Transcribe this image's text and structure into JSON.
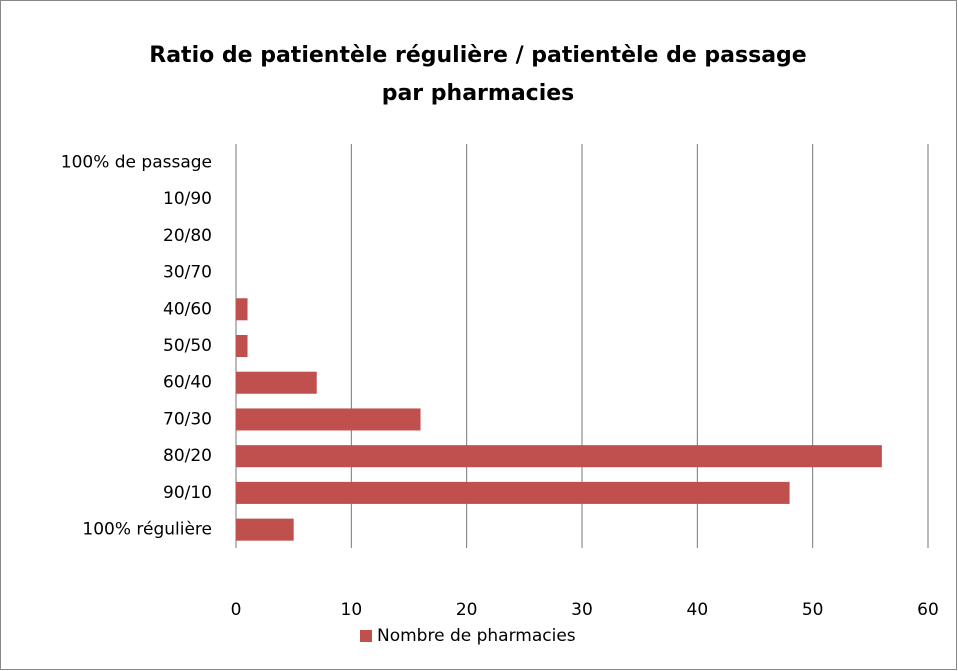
{
  "chart_data": {
    "type": "bar",
    "orientation": "horizontal",
    "title": [
      "Ratio de patientèle régulière / patientèle de passage",
      "par pharmacies"
    ],
    "categories": [
      "100% de passage",
      "10/90",
      "20/80",
      "30/70",
      "40/60",
      "50/50",
      "60/40",
      "70/30",
      "80/20",
      "90/10",
      "100% régulière"
    ],
    "series": [
      {
        "name": "Nombre de pharmacies",
        "color": "#c0504d",
        "values": [
          0,
          0,
          0,
          0,
          1,
          1,
          7,
          16,
          56,
          48,
          5
        ]
      }
    ],
    "xlim": [
      0,
      60
    ],
    "xticks": [
      0,
      10,
      20,
      30,
      40,
      50,
      60
    ],
    "grid": true,
    "legend": "bottom"
  }
}
